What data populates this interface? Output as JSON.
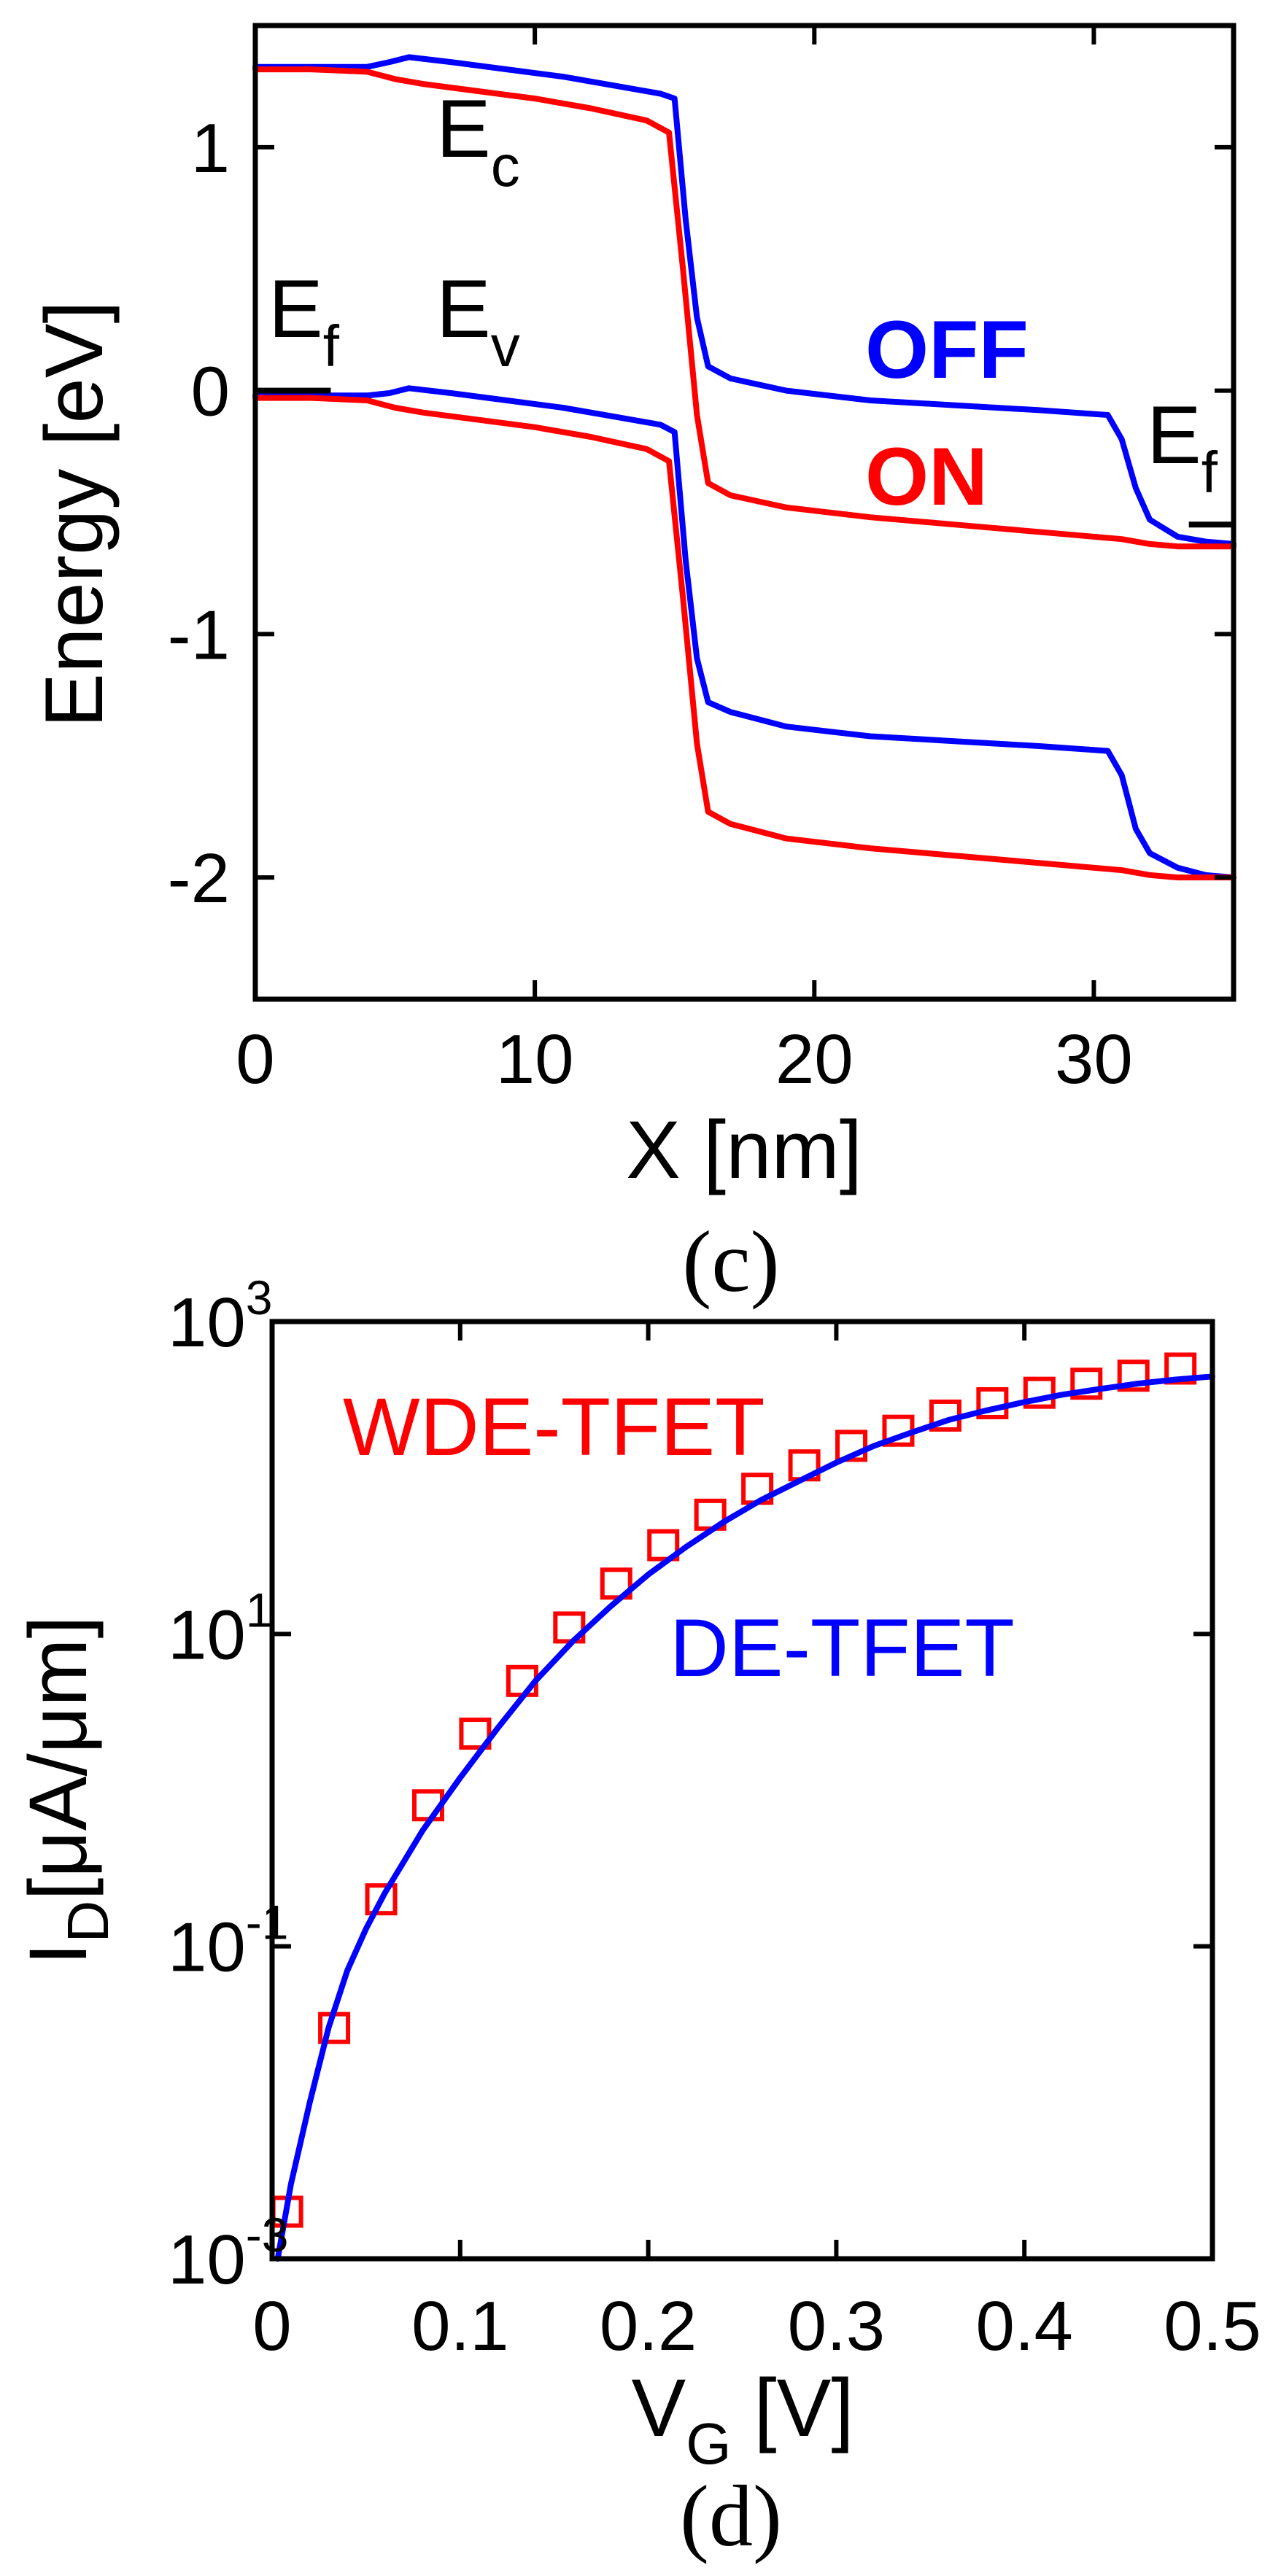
{
  "chart_data": [
    {
      "type": "line",
      "panel": "(c)",
      "xlabel": "X [nm]",
      "ylabel": "Energy [eV]",
      "xlim": [
        0,
        35
      ],
      "ylim": [
        -2.5,
        1.5
      ],
      "xticks": [
        0,
        10,
        20,
        30
      ],
      "yticks": [
        1,
        0,
        -1,
        -2
      ],
      "xtick_labels": [
        "0",
        "10",
        "20",
        "30"
      ],
      "ytick_labels": [
        "1",
        "0",
        "-1",
        "-2"
      ],
      "grid": false,
      "colors": {
        "OFF": "#0000ff",
        "ON": "#ff0000",
        "fermi": "#000000"
      },
      "annotations": {
        "ec": {
          "main": "E",
          "sub": "c"
        },
        "ev": {
          "main": "E",
          "sub": "v"
        },
        "ef_left": {
          "main": "E",
          "sub": "f"
        },
        "ef_right": {
          "main": "E",
          "sub": "f"
        },
        "off_label": "OFF",
        "on_label": "ON"
      },
      "fermi_levels": [
        {
          "x": [
            0,
            2.7
          ],
          "y": 0
        },
        {
          "x": [
            33.4,
            35
          ],
          "y": -0.55
        }
      ],
      "series": [
        {
          "name": "OFF Ec",
          "color": "#0000ff",
          "x": [
            0,
            2,
            4,
            4.8,
            5.5,
            7,
            9,
            11,
            13,
            14.5,
            15.0,
            15.4,
            15.8,
            16.2,
            17,
            19,
            22,
            25,
            28,
            30.5,
            31,
            31.5,
            32,
            33,
            34,
            35
          ],
          "y": [
            1.33,
            1.33,
            1.33,
            1.35,
            1.37,
            1.35,
            1.32,
            1.29,
            1.25,
            1.22,
            1.2,
            0.7,
            0.3,
            0.1,
            0.05,
            0.0,
            -0.04,
            -0.06,
            -0.08,
            -0.1,
            -0.2,
            -0.4,
            -0.53,
            -0.6,
            -0.62,
            -0.63
          ]
        },
        {
          "name": "ON Ec",
          "color": "#ff0000",
          "x": [
            0,
            2,
            4,
            5,
            6,
            8,
            10,
            12,
            14,
            14.8,
            15.3,
            15.8,
            16.2,
            17,
            19,
            22,
            25,
            28,
            31,
            32,
            33,
            35
          ],
          "y": [
            1.32,
            1.32,
            1.31,
            1.28,
            1.26,
            1.23,
            1.2,
            1.16,
            1.11,
            1.06,
            0.5,
            -0.1,
            -0.38,
            -0.43,
            -0.48,
            -0.52,
            -0.55,
            -0.58,
            -0.61,
            -0.63,
            -0.64,
            -0.64
          ]
        },
        {
          "name": "OFF Ev",
          "color": "#0000ff",
          "x": [
            0,
            2,
            4,
            4.8,
            5.5,
            7,
            9,
            11,
            13,
            14.5,
            15.0,
            15.4,
            15.8,
            16.2,
            17,
            19,
            22,
            25,
            28,
            30.5,
            31,
            31.5,
            32,
            33,
            34,
            35
          ],
          "y": [
            -0.02,
            -0.02,
            -0.02,
            -0.01,
            0.01,
            -0.01,
            -0.04,
            -0.07,
            -0.11,
            -0.14,
            -0.17,
            -0.7,
            -1.1,
            -1.28,
            -1.32,
            -1.38,
            -1.42,
            -1.44,
            -1.46,
            -1.48,
            -1.58,
            -1.8,
            -1.9,
            -1.96,
            -1.99,
            -2.0
          ]
        },
        {
          "name": "ON Ev",
          "color": "#ff0000",
          "x": [
            0,
            2,
            4,
            5,
            6,
            8,
            10,
            12,
            14,
            14.8,
            15.3,
            15.8,
            16.2,
            17,
            19,
            22,
            25,
            28,
            31,
            32,
            33,
            35
          ],
          "y": [
            -0.03,
            -0.03,
            -0.04,
            -0.07,
            -0.09,
            -0.12,
            -0.15,
            -0.19,
            -0.24,
            -0.29,
            -0.85,
            -1.45,
            -1.73,
            -1.78,
            -1.84,
            -1.88,
            -1.91,
            -1.94,
            -1.97,
            -1.99,
            -2.0,
            -2.0
          ]
        }
      ]
    },
    {
      "type": "line",
      "panel": "(d)",
      "yscale": "log",
      "xlabel": {
        "main": "V",
        "sub": "G",
        "rest": " [V]"
      },
      "ylabel": {
        "main": "I",
        "sub": "D",
        "rest": "[μA/μm]"
      },
      "xlim": [
        0,
        0.5
      ],
      "ylim_log10": [
        -3,
        3
      ],
      "xticks": [
        0,
        0.1,
        0.2,
        0.3,
        0.4,
        0.5
      ],
      "xtick_labels": [
        "0",
        "0.1",
        "0.2",
        "0.3",
        "0.4",
        "0.5"
      ],
      "yticks_log10": [
        3,
        1,
        -1,
        -3
      ],
      "ytick_labels": [
        {
          "base": "10",
          "exp": "3"
        },
        {
          "base": "10",
          "exp": "1"
        },
        {
          "base": "10",
          "exp": "-1"
        },
        {
          "base": "10",
          "exp": "-3"
        }
      ],
      "grid": false,
      "colors": {
        "WDE-TFET": "#ff0000",
        "DE-TFET": "#0000ff"
      },
      "series": [
        {
          "name": "WDE-TFET",
          "marker": "square",
          "color": "#ff0000",
          "x": [
            0.008,
            0.033,
            0.058,
            0.083,
            0.108,
            0.133,
            0.158,
            0.183,
            0.208,
            0.233,
            0.258,
            0.283,
            0.308,
            0.333,
            0.358,
            0.383,
            0.408,
            0.433,
            0.458,
            0.483
          ],
          "y": [
            0.002,
            0.03,
            0.2,
            0.8,
            2.3,
            5.0,
            11,
            21,
            37,
            58,
            85,
            120,
            160,
            200,
            250,
            300,
            350,
            400,
            450,
            500
          ]
        },
        {
          "name": "DE-TFET",
          "marker": "none",
          "color": "#0000ff",
          "x": [
            0.003,
            0.01,
            0.02,
            0.03,
            0.04,
            0.05,
            0.06,
            0.08,
            0.1,
            0.12,
            0.14,
            0.16,
            0.18,
            0.2,
            0.22,
            0.24,
            0.26,
            0.28,
            0.3,
            0.32,
            0.34,
            0.36,
            0.38,
            0.4,
            0.42,
            0.44,
            0.46,
            0.48,
            0.5
          ],
          "y": [
            0.001,
            0.003,
            0.01,
            0.03,
            0.07,
            0.13,
            0.22,
            0.55,
            1.2,
            2.5,
            5,
            9,
            15,
            24,
            36,
            52,
            72,
            95,
            125,
            160,
            195,
            235,
            270,
            305,
            340,
            370,
            400,
            425,
            445
          ]
        }
      ]
    }
  ],
  "captions": {
    "c": "(c)",
    "d": "(d)"
  }
}
